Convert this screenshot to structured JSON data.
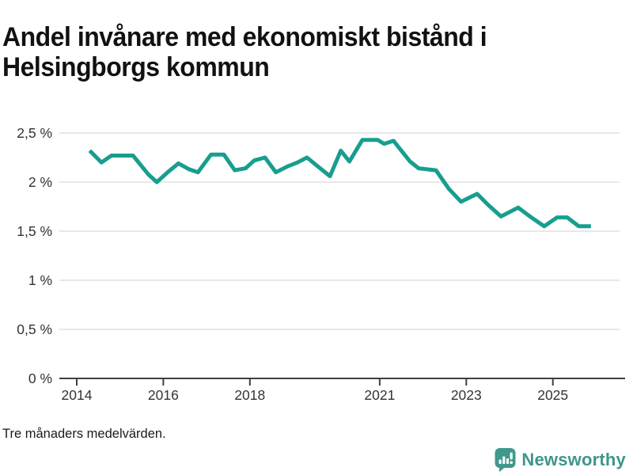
{
  "chart_data": {
    "type": "line",
    "title": "Andel invånare med ekonomiskt bistånd i Helsingborgs kommun",
    "note": "Tre månaders medelvärden.",
    "x_axis": {
      "range": [
        2013.6,
        2026.15
      ],
      "ticks": [
        2014,
        2016,
        2018,
        2021,
        2023,
        2025
      ],
      "tick_labels": [
        "2014",
        "2016",
        "2018",
        "2021",
        "2023",
        "2025"
      ]
    },
    "y_axis": {
      "range": [
        0,
        2.6
      ],
      "unit": "%",
      "ticks": [
        0,
        0.5,
        1,
        1.5,
        2,
        2.5
      ],
      "tick_labels": [
        "0 %",
        "0,5 %",
        "1 %",
        "1,5 %",
        "2 %",
        "2,5 %"
      ]
    },
    "grid": true,
    "legend_position": "none",
    "series": [
      {
        "name": "Andel invånare med ekonomiskt bistånd, Helsingborgs kommun",
        "color": "#179e8e",
        "points": [
          [
            2014.3,
            2.32
          ],
          [
            2014.57,
            2.2
          ],
          [
            2014.8,
            2.27
          ],
          [
            2015.3,
            2.27
          ],
          [
            2015.65,
            2.08
          ],
          [
            2015.85,
            2.0
          ],
          [
            2016.1,
            2.1
          ],
          [
            2016.35,
            2.19
          ],
          [
            2016.6,
            2.13
          ],
          [
            2016.8,
            2.1
          ],
          [
            2017.1,
            2.28
          ],
          [
            2017.4,
            2.28
          ],
          [
            2017.65,
            2.12
          ],
          [
            2017.9,
            2.14
          ],
          [
            2018.1,
            2.22
          ],
          [
            2018.35,
            2.25
          ],
          [
            2018.6,
            2.1
          ],
          [
            2018.87,
            2.16
          ],
          [
            2019.1,
            2.2
          ],
          [
            2019.32,
            2.25
          ],
          [
            2019.57,
            2.16
          ],
          [
            2019.85,
            2.06
          ],
          [
            2020.1,
            2.32
          ],
          [
            2020.3,
            2.21
          ],
          [
            2020.6,
            2.43
          ],
          [
            2020.95,
            2.43
          ],
          [
            2021.1,
            2.39
          ],
          [
            2021.32,
            2.42
          ],
          [
            2021.7,
            2.21
          ],
          [
            2021.9,
            2.14
          ],
          [
            2022.3,
            2.12
          ],
          [
            2022.6,
            1.93
          ],
          [
            2022.88,
            1.8
          ],
          [
            2023.25,
            1.88
          ],
          [
            2023.5,
            1.77
          ],
          [
            2023.8,
            1.65
          ],
          [
            2024.2,
            1.74
          ],
          [
            2024.5,
            1.64
          ],
          [
            2024.8,
            1.55
          ],
          [
            2025.1,
            1.64
          ],
          [
            2025.33,
            1.64
          ],
          [
            2025.6,
            1.55
          ],
          [
            2025.88,
            1.55
          ]
        ]
      }
    ]
  },
  "branding": {
    "logo_text": "Newsworthy",
    "icon": "newsworthy-bar-chart-bubble-icon",
    "logo_color": "#3e968b",
    "icon_color": "#40998c"
  },
  "colors": {
    "line": "#179e8e",
    "grid": "#e0e0e0",
    "axis": "#404040",
    "tick_text": "#333333",
    "title_text": "#111111"
  }
}
